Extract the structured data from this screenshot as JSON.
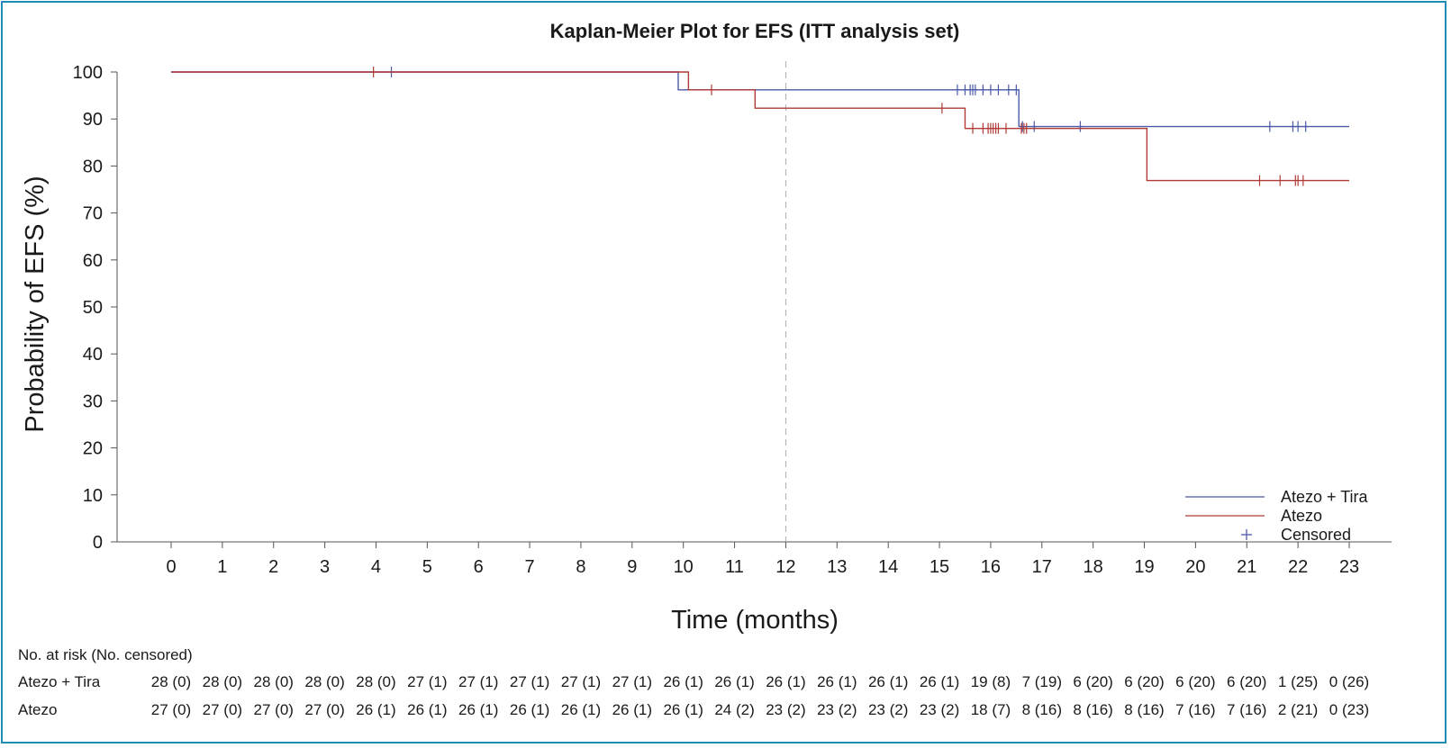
{
  "colors": {
    "atezo_tira": "#4a5aa8",
    "atezo": "#b03a36",
    "border": "#1f8db5",
    "reference_line": "#aaaaaa"
  },
  "chart_data": {
    "type": "line",
    "subtype": "kaplan-meier step",
    "title": "Kaplan-Meier Plot for EFS (ITT analysis set)",
    "xlabel": "Time (months)",
    "ylabel": "Probability of EFS (%)",
    "xlim": [
      0,
      23
    ],
    "ylim": [
      0,
      100
    ],
    "x_ticks": [
      0,
      1,
      2,
      3,
      4,
      5,
      6,
      7,
      8,
      9,
      10,
      11,
      12,
      13,
      14,
      15,
      16,
      17,
      18,
      19,
      20,
      21,
      22,
      23
    ],
    "y_ticks": [
      0,
      10,
      20,
      30,
      40,
      50,
      60,
      70,
      80,
      90,
      100
    ],
    "reference_line_x": 12,
    "series": [
      {
        "name": "Atezo + Tira",
        "color_key": "atezo_tira",
        "steps": [
          [
            0,
            100
          ],
          [
            9.9,
            96.2
          ],
          [
            16.55,
            88.4
          ],
          [
            23,
            88.4
          ]
        ],
        "censored": [
          [
            4.3,
            100
          ],
          [
            15.35,
            96.2
          ],
          [
            15.5,
            96.2
          ],
          [
            15.6,
            96.2
          ],
          [
            15.65,
            96.2
          ],
          [
            15.7,
            96.2
          ],
          [
            15.85,
            96.2
          ],
          [
            16.0,
            96.2
          ],
          [
            16.15,
            96.2
          ],
          [
            16.35,
            96.2
          ],
          [
            16.5,
            96.2
          ],
          [
            16.62,
            88.4
          ],
          [
            16.85,
            88.4
          ],
          [
            17.75,
            88.4
          ],
          [
            21.45,
            88.4
          ],
          [
            21.9,
            88.4
          ],
          [
            22.0,
            88.4
          ],
          [
            22.15,
            88.4
          ]
        ]
      },
      {
        "name": "Atezo",
        "color_key": "atezo",
        "steps": [
          [
            0,
            100
          ],
          [
            10.1,
            96.2
          ],
          [
            11.4,
            92.3
          ],
          [
            15.5,
            88.0
          ],
          [
            19.05,
            76.9
          ],
          [
            23,
            76.9
          ]
        ],
        "censored": [
          [
            3.95,
            100
          ],
          [
            10.55,
            96.2
          ],
          [
            15.05,
            92.3
          ],
          [
            15.65,
            88.0
          ],
          [
            15.85,
            88.0
          ],
          [
            15.95,
            88.0
          ],
          [
            16.0,
            88.0
          ],
          [
            16.05,
            88.0
          ],
          [
            16.1,
            88.0
          ],
          [
            16.15,
            88.0
          ],
          [
            16.3,
            88.0
          ],
          [
            16.6,
            88.0
          ],
          [
            16.65,
            88.0
          ],
          [
            16.7,
            88.0
          ],
          [
            21.25,
            76.9
          ],
          [
            21.65,
            76.9
          ],
          [
            21.95,
            76.9
          ],
          [
            22.0,
            76.9
          ],
          [
            22.1,
            76.9
          ]
        ]
      }
    ],
    "legend": {
      "placement": "bottom-right",
      "entries": [
        "Atezo + Tira",
        "Atezo",
        "Censored"
      ]
    }
  },
  "risk_table": {
    "header": "No. at risk (No. censored)",
    "times": [
      0,
      1,
      2,
      3,
      4,
      5,
      6,
      7,
      8,
      9,
      10,
      11,
      12,
      13,
      14,
      15,
      16,
      17,
      18,
      19,
      20,
      21,
      22,
      23
    ],
    "rows": [
      {
        "label": "Atezo + Tira",
        "values": [
          "28 (0)",
          "28 (0)",
          "28 (0)",
          "28 (0)",
          "28 (0)",
          "27 (1)",
          "27 (1)",
          "27 (1)",
          "27 (1)",
          "27 (1)",
          "26 (1)",
          "26 (1)",
          "26 (1)",
          "26 (1)",
          "26 (1)",
          "26 (1)",
          "19 (8)",
          "7 (19)",
          "6 (20)",
          "6 (20)",
          "6 (20)",
          "6 (20)",
          "1 (25)",
          "0 (26)"
        ]
      },
      {
        "label": "Atezo",
        "values": [
          "27 (0)",
          "27 (0)",
          "27 (0)",
          "27 (0)",
          "26 (1)",
          "26 (1)",
          "26 (1)",
          "26 (1)",
          "26 (1)",
          "26 (1)",
          "26 (1)",
          "24 (2)",
          "23 (2)",
          "23 (2)",
          "23 (2)",
          "23 (2)",
          "18 (7)",
          "8 (16)",
          "8 (16)",
          "8 (16)",
          "7 (16)",
          "7 (16)",
          "2 (21)",
          "0 (23)"
        ]
      }
    ]
  }
}
